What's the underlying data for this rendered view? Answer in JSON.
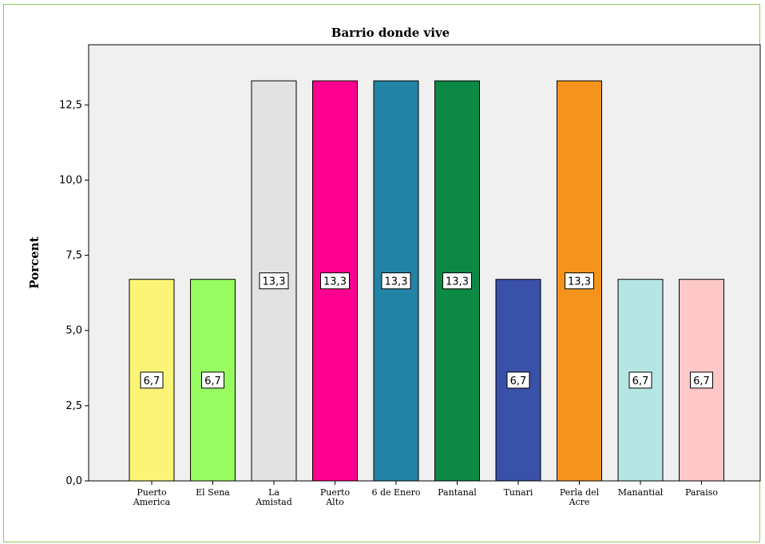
{
  "chart_data": {
    "type": "bar",
    "title": "Barrio donde vive",
    "ylabel": "Porcent",
    "xlabel": "",
    "ylim": [
      0,
      14.5
    ],
    "yticks": [
      "0,0",
      "2,5",
      "5,0",
      "7,5",
      "10,0",
      "12,5"
    ],
    "ytick_values": [
      0,
      2.5,
      5,
      7.5,
      10,
      12.5
    ],
    "grid": false,
    "categories": [
      [
        "Puerto",
        "America"
      ],
      [
        "El Sena"
      ],
      [
        "La",
        "Amistad"
      ],
      [
        "Puerto",
        "Alto"
      ],
      [
        "6 de Enero"
      ],
      [
        "Pantanal"
      ],
      [
        "Tunari"
      ],
      [
        "Perla del",
        "Acre"
      ],
      [
        "Manantial"
      ],
      [
        "Paraiso"
      ]
    ],
    "values": [
      6.7,
      6.7,
      13.3,
      13.3,
      13.3,
      13.3,
      6.7,
      13.3,
      6.7,
      6.7
    ],
    "data_labels": [
      "6,7",
      "6,7",
      "13,3",
      "13,3",
      "13,3",
      "13,3",
      "6,7",
      "13,3",
      "6,7",
      "6,7"
    ],
    "colors": [
      "#fbf477",
      "#96fc62",
      "#e2e2e2",
      "#ff0090",
      "#2383a6",
      "#0e8845",
      "#3a51a8",
      "#f5941d",
      "#b6e6e4",
      "#fec8c8"
    ],
    "plot_background": "#f0f0f0",
    "frame_border": "#8fc85a"
  }
}
